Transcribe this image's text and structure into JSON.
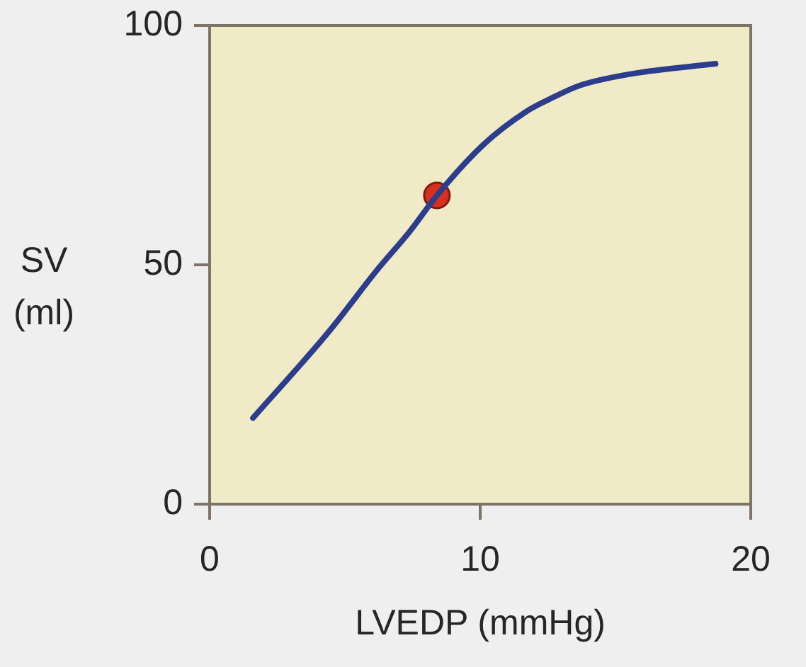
{
  "chart_data": {
    "type": "line",
    "xlabel": "LVEDP (mmHg)",
    "ylabel": "SV (ml)",
    "xlim": [
      0,
      20
    ],
    "ylim": [
      0,
      100
    ],
    "xticks": [
      0,
      10,
      20
    ],
    "yticks": [
      0,
      50,
      100
    ],
    "line_style": "solid",
    "series": [
      {
        "type": "line",
        "marker": "none",
        "color": "#2b3d8c",
        "x": [
          1.6,
          4.4,
          6.2,
          7.4,
          8.4,
          10.1,
          11.7,
          12.7,
          13.7,
          15.7,
          18.7
        ],
        "values": [
          18,
          36,
          49,
          57,
          64.5,
          75,
          82,
          85,
          87.5,
          90,
          92
        ]
      },
      {
        "type": "scatter",
        "marker": "circle",
        "color": "#d9301e",
        "x": [
          8.4
        ],
        "values": [
          64.5
        ]
      }
    ]
  }
}
